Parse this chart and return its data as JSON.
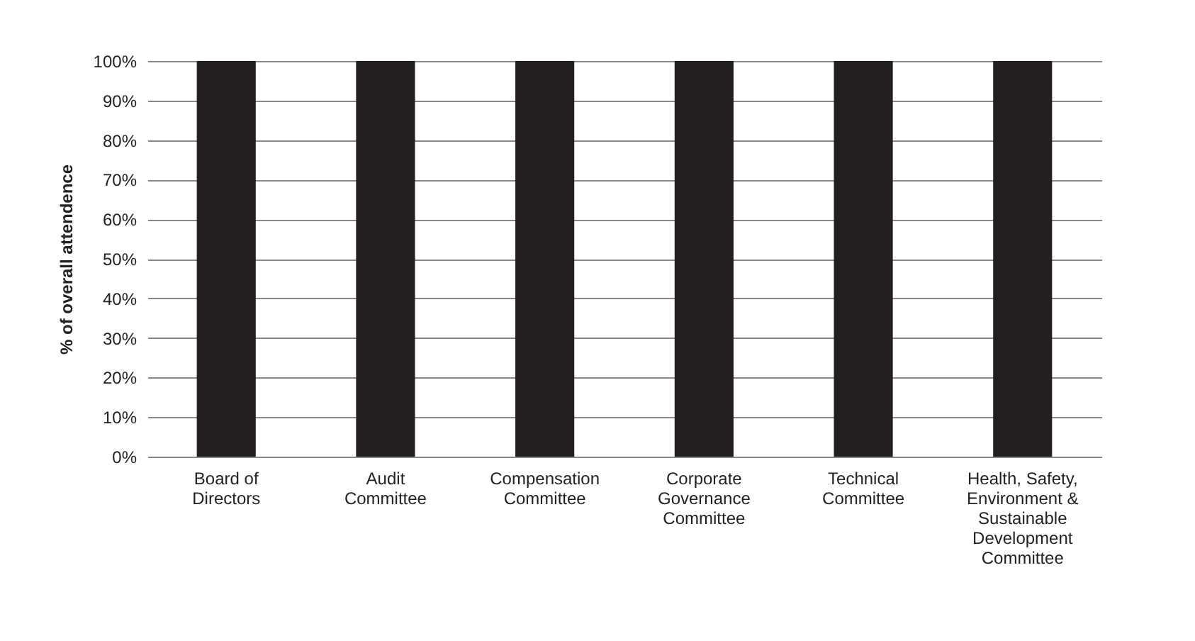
{
  "chart_data": {
    "type": "bar",
    "categories": [
      "Board of\nDirectors",
      "Audit\nCommittee",
      "Compensation\nCommittee",
      "Corporate\nGovernance\nCommittee",
      "Technical\nCommittee",
      "Health, Safety,\nEnvironment &\nSustainable\nDevelopment\nCommittee"
    ],
    "values": [
      100,
      100,
      100,
      100,
      100,
      100
    ],
    "color": "#231f20",
    "ylabel": "% of overall attendence",
    "ylim": [
      0,
      100
    ],
    "yticks": [
      {
        "value": 0,
        "label": "0%"
      },
      {
        "value": 10,
        "label": "10%"
      },
      {
        "value": 20,
        "label": "20%"
      },
      {
        "value": 30,
        "label": "30%"
      },
      {
        "value": 40,
        "label": "40%"
      },
      {
        "value": 50,
        "label": "50%"
      },
      {
        "value": 60,
        "label": "60%"
      },
      {
        "value": 70,
        "label": "70%"
      },
      {
        "value": 80,
        "label": "80%"
      },
      {
        "value": 90,
        "label": "90%"
      },
      {
        "value": 100,
        "label": "100%"
      }
    ],
    "grid": "y"
  }
}
